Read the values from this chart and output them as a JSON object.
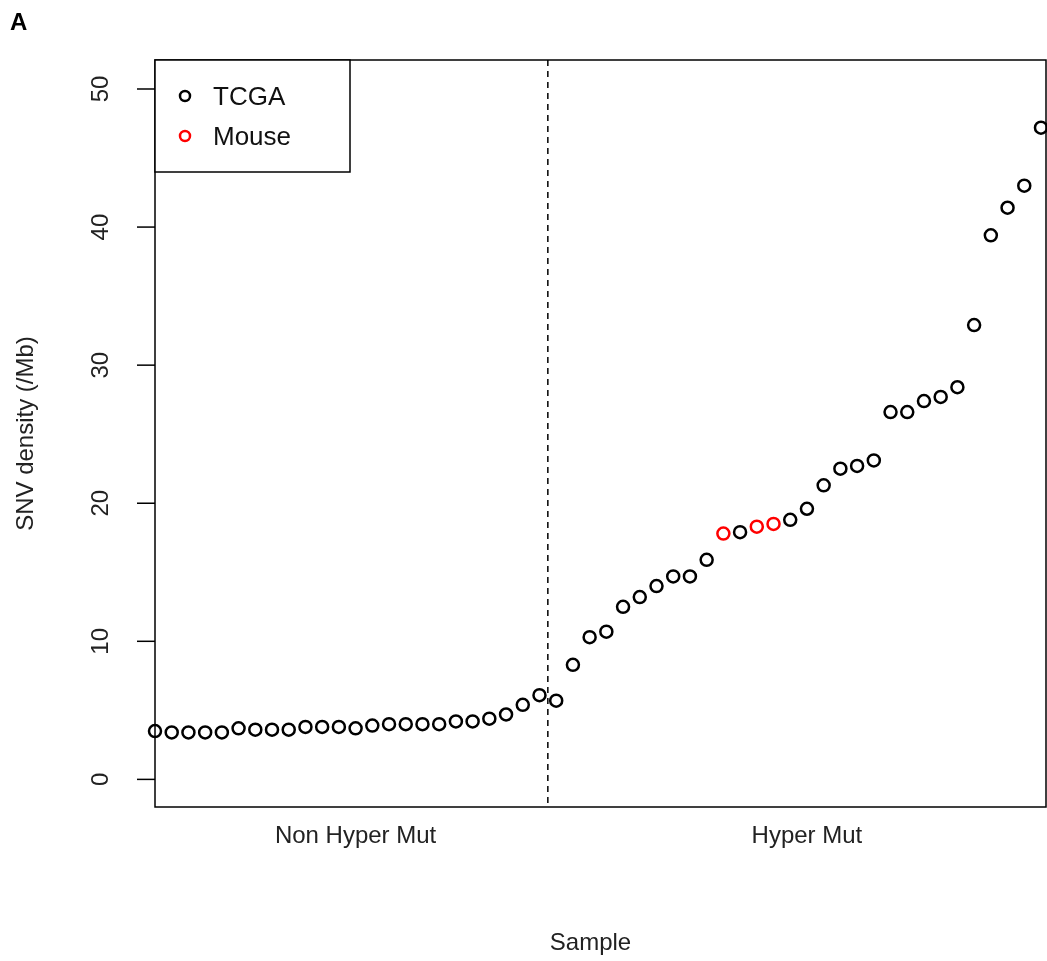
{
  "chart_data": {
    "type": "scatter",
    "xlabel": "Sample",
    "ylabel": "SNV density (/Mb)",
    "annotations": [
      "A"
    ],
    "categories": [
      null,
      null,
      null,
      null,
      null,
      null,
      null,
      null,
      null,
      null,
      null,
      null,
      "Non Hyper Mut",
      null,
      null,
      null,
      null,
      null,
      null,
      null,
      null,
      null,
      null,
      null,
      null,
      null,
      null,
      null,
      null,
      null,
      null,
      null,
      null,
      null,
      null,
      null,
      null,
      null,
      null,
      "Hyper Mut",
      null,
      null,
      null,
      null,
      null,
      null,
      null,
      null,
      null,
      null,
      null,
      null,
      null,
      null
    ],
    "series": [
      {
        "name": "TCGA",
        "color": "#000000",
        "values": [
          3.5,
          3.4,
          3.4,
          3.4,
          3.4,
          3.7,
          3.6,
          3.6,
          3.6,
          3.8,
          3.8,
          3.8,
          3.7,
          3.9,
          4.0,
          4.0,
          4.0,
          4.0,
          4.2,
          4.2,
          4.4,
          4.7,
          5.4,
          6.1,
          5.7,
          8.3,
          10.3,
          10.7,
          12.5,
          13.2,
          14.0,
          14.7,
          14.7,
          15.9,
          null,
          17.9,
          null,
          null,
          18.8,
          19.6,
          21.3,
          22.5,
          22.7,
          23.1,
          26.6,
          26.6,
          27.4,
          27.7,
          28.4,
          32.9,
          39.4,
          41.4,
          43.0,
          47.2
        ]
      },
      {
        "name": "Mouse",
        "color": "#ff0000",
        "values": [
          null,
          null,
          null,
          null,
          null,
          null,
          null,
          null,
          null,
          null,
          null,
          null,
          null,
          null,
          null,
          null,
          null,
          null,
          null,
          null,
          null,
          null,
          null,
          null,
          null,
          null,
          null,
          null,
          null,
          null,
          null,
          null,
          null,
          null,
          17.8,
          null,
          18.3,
          18.5,
          null,
          null,
          null,
          null,
          null,
          null,
          null,
          null,
          null,
          null,
          null,
          null,
          null,
          null,
          null,
          null
        ]
      }
    ],
    "ylim": [
      -2,
      52.1
    ],
    "yticks": [
      0,
      10,
      20,
      30,
      40,
      50
    ],
    "marker": "circle",
    "legend": "top left",
    "grid": false
  }
}
